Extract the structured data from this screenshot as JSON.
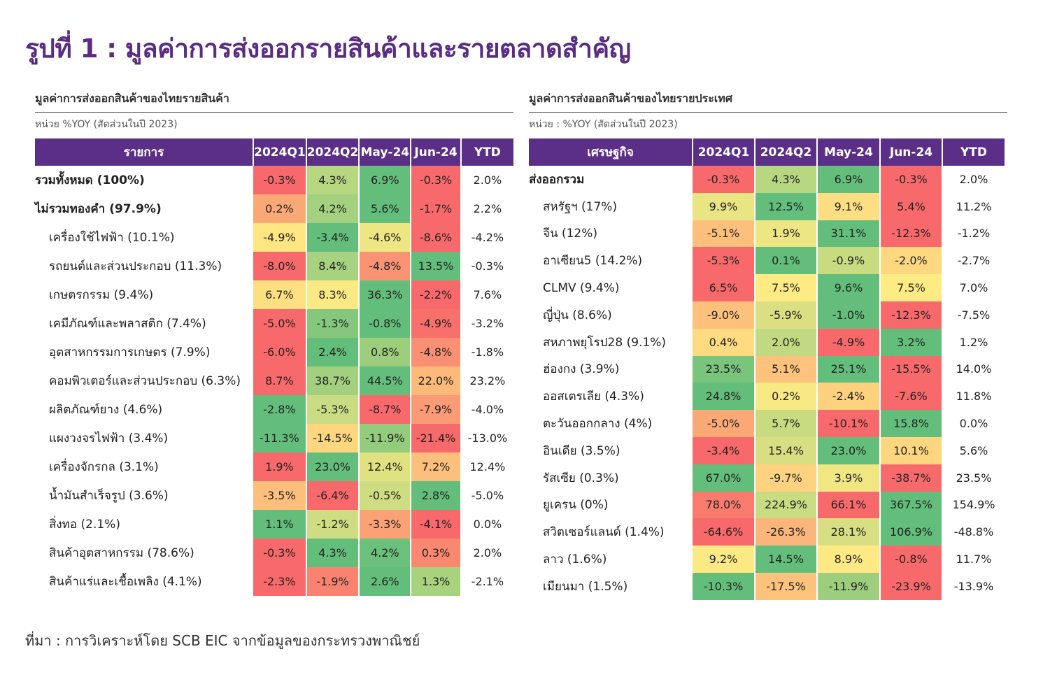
{
  "title": "รูปที่ 1 : มูลค่าการส่งออกรายสินค้าและรายตลาดสำคัญ",
  "source": "ที่มา : การวิเคราะห์โดย SCB EIC จากข้อมูลของกระทรวงพาณิชย์",
  "colors": {
    "header_bg": "#5b2f87",
    "title_color": "#5a2d82",
    "heat_low": "#f8696b",
    "heat_mid": "#ffeb84",
    "heat_high": "#63be7b"
  },
  "chart_data": [
    {
      "type": "heatmap",
      "title": "มูลค่าการส่งออกสินค้าของไทยรายสินค้า",
      "unit": "หน่วย  %YOY (สัดส่วนในปี 2023)",
      "columns": [
        "รายการ",
        "2024Q1",
        "2024Q2",
        "May-24",
        "Jun-24",
        "YTD"
      ],
      "rows": [
        {
          "label": "รวมทั้งหมด (100%)",
          "bold": true,
          "indent": false,
          "values": [
            "-0.3%",
            "4.3%",
            "6.9%",
            "-0.3%"
          ],
          "ytd": "2.0%"
        },
        {
          "label": "ไม่รวมทองคำ (97.9%)",
          "bold": true,
          "indent": false,
          "values": [
            "0.2%",
            "4.2%",
            "5.6%",
            "-1.7%"
          ],
          "ytd": "2.2%"
        },
        {
          "label": "เครื่องใช้ไฟฟ้า (10.1%)",
          "bold": false,
          "indent": true,
          "values": [
            "-4.9%",
            "-3.4%",
            "-4.6%",
            "-8.6%"
          ],
          "ytd": "-4.2%"
        },
        {
          "label": "รถยนต์และส่วนประกอบ (11.3%)",
          "bold": false,
          "indent": true,
          "values": [
            "-8.0%",
            "8.4%",
            "-4.8%",
            "13.5%"
          ],
          "ytd": "-0.3%"
        },
        {
          "label": "เกษตรกรรม (9.4%)",
          "bold": false,
          "indent": true,
          "values": [
            "6.7%",
            "8.3%",
            "36.3%",
            "-2.2%"
          ],
          "ytd": "7.6%"
        },
        {
          "label": "เคมีภัณฑ์และพลาสติก (7.4%)",
          "bold": false,
          "indent": true,
          "values": [
            "-5.0%",
            "-1.3%",
            "-0.8%",
            "-4.9%"
          ],
          "ytd": "-3.2%"
        },
        {
          "label": "อุตสาหกรรมการเกษตร (7.9%)",
          "bold": false,
          "indent": true,
          "values": [
            "-6.0%",
            "2.4%",
            "0.8%",
            "-4.8%"
          ],
          "ytd": "-1.8%"
        },
        {
          "label": "คอมพิวเตอร์และส่วนประกอบ (6.3%)",
          "bold": false,
          "indent": true,
          "values": [
            "8.7%",
            "38.7%",
            "44.5%",
            "22.0%"
          ],
          "ytd": "23.2%"
        },
        {
          "label": "ผลิตภัณฑ์ยาง (4.6%)",
          "bold": false,
          "indent": true,
          "values": [
            "-2.8%",
            "-5.3%",
            "-8.7%",
            "-7.9%"
          ],
          "ytd": "-4.0%"
        },
        {
          "label": "แผงวงจรไฟฟ้า (3.4%)",
          "bold": false,
          "indent": true,
          "values": [
            "-11.3%",
            "-14.5%",
            "-11.9%",
            "-21.4%"
          ],
          "ytd": "-13.0%"
        },
        {
          "label": "เครื่องจักรกล (3.1%)",
          "bold": false,
          "indent": true,
          "values": [
            "1.9%",
            "23.0%",
            "12.4%",
            "7.2%"
          ],
          "ytd": "12.4%"
        },
        {
          "label": "น้ำมันสำเร็จรูป (3.6%)",
          "bold": false,
          "indent": true,
          "values": [
            "-3.5%",
            "-6.4%",
            "-0.5%",
            "2.8%"
          ],
          "ytd": "-5.0%"
        },
        {
          "label": "สิ่งทอ (2.1%)",
          "bold": false,
          "indent": true,
          "values": [
            "1.1%",
            "-1.2%",
            "-3.3%",
            "-4.1%"
          ],
          "ytd": "0.0%"
        },
        {
          "label": "สินค้าอุตสาหกรรม (78.6%)",
          "bold": false,
          "indent": true,
          "values": [
            "-0.3%",
            "4.3%",
            "4.2%",
            "0.3%"
          ],
          "ytd": "2.0%"
        },
        {
          "label": "สินค้าแร่และเชื้อเพลิง (4.1%)",
          "bold": false,
          "indent": true,
          "values": [
            "-2.3%",
            "-1.9%",
            "2.6%",
            "1.3%"
          ],
          "ytd": "-2.1%"
        }
      ]
    },
    {
      "type": "heatmap",
      "title": "มูลค่าการส่งออกสินค้าของไทยรายประเทศ",
      "unit": "หน่วย : %YOY (สัดส่วนในปี 2023)",
      "columns": [
        "เศรษฐกิจ",
        "2024Q1",
        "2024Q2",
        "May-24",
        "Jun-24",
        "YTD"
      ],
      "rows": [
        {
          "label": "ส่งออกรวม",
          "bold": true,
          "indent": false,
          "values": [
            "-0.3%",
            "4.3%",
            "6.9%",
            "-0.3%"
          ],
          "ytd": "2.0%"
        },
        {
          "label": "สหรัฐฯ (17%)",
          "bold": false,
          "indent": true,
          "values": [
            "9.9%",
            "12.5%",
            "9.1%",
            "5.4%"
          ],
          "ytd": "11.2%"
        },
        {
          "label": "จีน (12%)",
          "bold": false,
          "indent": true,
          "values": [
            "-5.1%",
            "1.9%",
            "31.1%",
            "-12.3%"
          ],
          "ytd": "-1.2%"
        },
        {
          "label": "อาเซียน5 (14.2%)",
          "bold": false,
          "indent": true,
          "values": [
            "-5.3%",
            "0.1%",
            "-0.9%",
            "-2.0%"
          ],
          "ytd": "-2.7%"
        },
        {
          "label": "CLMV (9.4%)",
          "bold": false,
          "indent": true,
          "values": [
            "6.5%",
            "7.5%",
            "9.6%",
            "7.5%"
          ],
          "ytd": "7.0%"
        },
        {
          "label": "ญี่ปุ่น (8.6%)",
          "bold": false,
          "indent": true,
          "values": [
            "-9.0%",
            "-5.9%",
            "-1.0%",
            "-12.3%"
          ],
          "ytd": "-7.5%"
        },
        {
          "label": "สหภาพยุโรป28 (9.1%)",
          "bold": false,
          "indent": true,
          "values": [
            "0.4%",
            "2.0%",
            "-4.9%",
            "3.2%"
          ],
          "ytd": "1.2%"
        },
        {
          "label": "ฮ่องกง (3.9%)",
          "bold": false,
          "indent": true,
          "values": [
            "23.5%",
            "5.1%",
            "25.1%",
            "-15.5%"
          ],
          "ytd": "14.0%"
        },
        {
          "label": "ออสเตรเลีย (4.3%)",
          "bold": false,
          "indent": true,
          "values": [
            "24.8%",
            "0.2%",
            "-2.4%",
            "-7.6%"
          ],
          "ytd": "11.8%"
        },
        {
          "label": "ตะวันออกกลาง (4%)",
          "bold": false,
          "indent": true,
          "values": [
            "-5.0%",
            "5.7%",
            "-10.1%",
            "15.8%"
          ],
          "ytd": "0.0%"
        },
        {
          "label": "อินเดีย (3.5%)",
          "bold": false,
          "indent": true,
          "values": [
            "-3.4%",
            "15.4%",
            "23.0%",
            "10.1%"
          ],
          "ytd": "5.6%"
        },
        {
          "label": "รัสเซีย (0.3%)",
          "bold": false,
          "indent": true,
          "values": [
            "67.0%",
            "-9.7%",
            "3.9%",
            "-38.7%"
          ],
          "ytd": "23.5%"
        },
        {
          "label": "ยูเครน (0%)",
          "bold": false,
          "indent": true,
          "values": [
            "78.0%",
            "224.9%",
            "66.1%",
            "367.5%"
          ],
          "ytd": "154.9%"
        },
        {
          "label": "สวิตเซอร์แลนด์ (1.4%)",
          "bold": false,
          "indent": true,
          "values": [
            "-64.6%",
            "-26.3%",
            "28.1%",
            "106.9%"
          ],
          "ytd": "-48.8%"
        },
        {
          "label": "ลาว (1.6%)",
          "bold": false,
          "indent": true,
          "values": [
            "9.2%",
            "14.5%",
            "8.9%",
            "-0.8%"
          ],
          "ytd": "11.7%"
        },
        {
          "label": "เมียนมา (1.5%)",
          "bold": false,
          "indent": true,
          "values": [
            "-10.3%",
            "-17.5%",
            "-11.9%",
            "-23.9%"
          ],
          "ytd": "-13.9%"
        }
      ]
    }
  ]
}
